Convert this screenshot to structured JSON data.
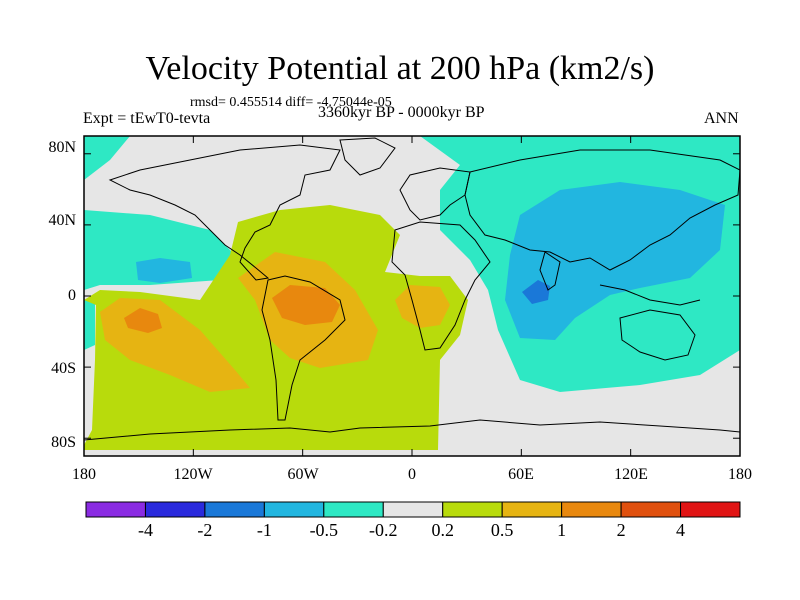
{
  "header": {
    "title": "Velocity Potential at 200 hPa (km2/s)",
    "stats": "rmsd= 0.455514 diff= -4.75044e-05",
    "experiment": "Expt = tEwT0-tevta",
    "period": "3360kyr BP - 0000kyr BP",
    "season": "ANN"
  },
  "axes": {
    "y_ticks": [
      "80N",
      "40N",
      "0",
      "40S",
      "80S"
    ],
    "x_ticks": [
      "180",
      "120W",
      "60W",
      "0",
      "60E",
      "120E",
      "180"
    ]
  },
  "colorbar": {
    "labels": [
      "-4",
      "-2",
      "-1",
      "-0.5",
      "-0.2",
      "0.2",
      "0.5",
      "1",
      "2",
      "4"
    ],
    "colors": [
      "#8a2be2",
      "#2a2add",
      "#1a78d8",
      "#22b6e0",
      "#2ee8c4",
      "#e6e6e6",
      "#b8db0c",
      "#e6b412",
      "#e8880e",
      "#e0500e",
      "#e01414"
    ]
  },
  "map": {
    "land_color": "#000000",
    "ocean_background": "#e6e6e6",
    "regions": [
      {
        "name": "pacific-positive",
        "level": "0.2 to 0.5"
      },
      {
        "name": "south-america-max",
        "level": "1 to 2"
      },
      {
        "name": "asia-negative",
        "level": "-0.5 to -1"
      },
      {
        "name": "maritime-continent-min",
        "level": "-1 to -2"
      }
    ]
  }
}
